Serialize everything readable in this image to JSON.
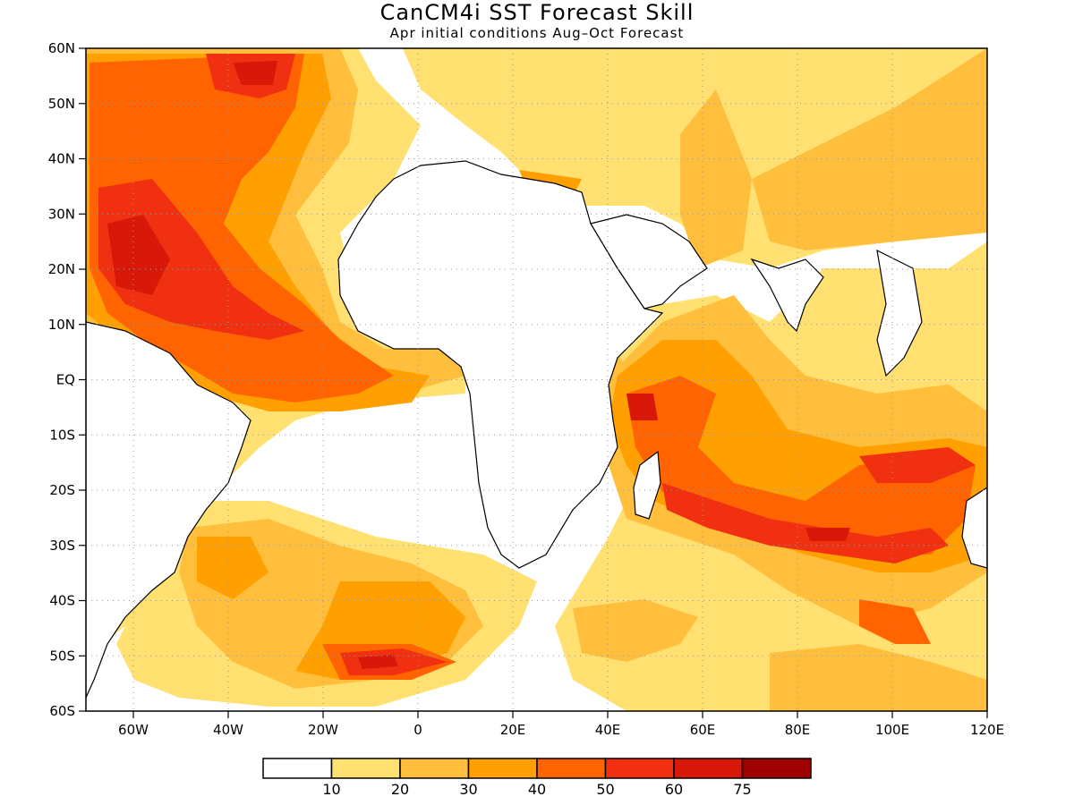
{
  "title": "CanCM4i SST Forecast Skill",
  "subtitle": "Apr initial conditions  Aug–Oct Forecast",
  "map": {
    "lon_range": [
      -70,
      120
    ],
    "lat_range": [
      -60,
      60
    ],
    "lat_labels": [
      {
        "lat": 60,
        "label": "60N"
      },
      {
        "lat": 50,
        "label": "50N"
      },
      {
        "lat": 40,
        "label": "40N"
      },
      {
        "lat": 30,
        "label": "30N"
      },
      {
        "lat": 20,
        "label": "20N"
      },
      {
        "lat": 10,
        "label": "10N"
      },
      {
        "lat": 0,
        "label": "EQ"
      },
      {
        "lat": -10,
        "label": "10S"
      },
      {
        "lat": -20,
        "label": "20S"
      },
      {
        "lat": -30,
        "label": "30S"
      },
      {
        "lat": -40,
        "label": "40S"
      },
      {
        "lat": -50,
        "label": "50S"
      },
      {
        "lat": -60,
        "label": "60S"
      }
    ],
    "lon_labels": [
      {
        "lon": -60,
        "label": "60W"
      },
      {
        "lon": -40,
        "label": "40W"
      },
      {
        "lon": -20,
        "label": "20W"
      },
      {
        "lon": 0,
        "label": "0"
      },
      {
        "lon": 20,
        "label": "20E"
      },
      {
        "lon": 40,
        "label": "40E"
      },
      {
        "lon": 60,
        "label": "60E"
      },
      {
        "lon": 80,
        "label": "80E"
      },
      {
        "lon": 100,
        "label": "100E"
      },
      {
        "lon": 120,
        "label": "120E"
      }
    ],
    "grid": true
  },
  "colorbar": {
    "colors": [
      "#ffffff",
      "#ffe070",
      "#ffbe3c",
      "#ffa000",
      "#ff6400",
      "#f03010",
      "#d81808",
      "#a00000"
    ],
    "labels": [
      "10",
      "20",
      "30",
      "40",
      "50",
      "60",
      "75"
    ]
  }
}
